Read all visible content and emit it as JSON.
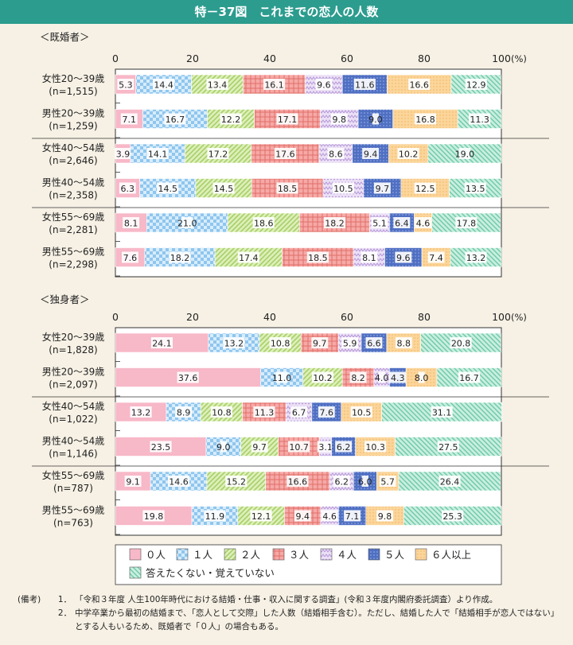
{
  "title": "特－37図　これまでの恋人の人数",
  "chart_data": [
    {
      "type": "bar",
      "orientation": "horizontal",
      "stacked": true,
      "title": "＜既婚者＞",
      "xlim": [
        0,
        100
      ],
      "x_ticks": [
        "0",
        "20",
        "40",
        "60",
        "80",
        "100"
      ],
      "x_unit": "(%)",
      "categories": [
        [
          "女性20～39歳",
          "(n=1,515)"
        ],
        [
          "男性20～39歳",
          "(n=1,259)"
        ],
        [
          "女性40～54歳",
          "(n=2,646)"
        ],
        [
          "男性40～54歳",
          "(n=2,358)"
        ],
        [
          "女性55～69歳",
          "(n=2,281)"
        ],
        [
          "男性55～69歳",
          "(n=2,298)"
        ]
      ],
      "rows": [
        [
          5.3,
          14.4,
          13.4,
          16.1,
          9.6,
          11.6,
          16.6,
          12.9
        ],
        [
          7.1,
          16.7,
          12.2,
          17.1,
          9.8,
          9.0,
          16.8,
          11.3
        ],
        [
          3.9,
          14.1,
          17.2,
          17.6,
          8.6,
          9.4,
          10.2,
          19.0
        ],
        [
          6.3,
          14.5,
          14.5,
          18.5,
          10.5,
          9.7,
          12.5,
          13.5
        ],
        [
          8.1,
          21.0,
          18.6,
          18.2,
          5.1,
          6.4,
          4.6,
          17.8
        ],
        [
          7.6,
          18.2,
          17.4,
          18.5,
          8.1,
          9.6,
          7.4,
          13.2
        ]
      ]
    },
    {
      "type": "bar",
      "orientation": "horizontal",
      "stacked": true,
      "title": "＜独身者＞",
      "xlim": [
        0,
        100
      ],
      "x_ticks": [
        "0",
        "20",
        "40",
        "60",
        "80",
        "100"
      ],
      "x_unit": "(%)",
      "categories": [
        [
          "女性20～39歳",
          "(n=1,828)"
        ],
        [
          "男性20～39歳",
          "(n=2,097)"
        ],
        [
          "女性40～54歳",
          "(n=1,022)"
        ],
        [
          "男性40～54歳",
          "(n=1,146)"
        ],
        [
          "女性55～69歳",
          "(n=787)"
        ],
        [
          "男性55～69歳",
          "(n=763)"
        ]
      ],
      "rows": [
        [
          24.1,
          13.2,
          10.8,
          9.7,
          5.9,
          6.6,
          8.8,
          20.8
        ],
        [
          37.6,
          11.0,
          10.2,
          8.2,
          4.0,
          4.3,
          8.0,
          16.7
        ],
        [
          13.2,
          8.9,
          10.8,
          11.3,
          6.7,
          7.6,
          10.5,
          31.1
        ],
        [
          23.5,
          9.0,
          9.7,
          10.7,
          3.1,
          6.2,
          10.3,
          27.5
        ],
        [
          9.1,
          14.6,
          15.2,
          16.6,
          6.2,
          6.0,
          5.7,
          26.4
        ],
        [
          19.8,
          11.9,
          12.1,
          9.4,
          4.6,
          7.1,
          9.8,
          25.3
        ]
      ]
    }
  ],
  "series": [
    {
      "name": "０人",
      "color": "#f7b8c8"
    },
    {
      "name": "１人",
      "color": "#a9d4f2"
    },
    {
      "name": "２人",
      "color": "#cfe6a0"
    },
    {
      "name": "３人",
      "color": "#f49d9a"
    },
    {
      "name": "４人",
      "color": "#d7c2ea"
    },
    {
      "name": "５人",
      "color": "#4f6fc2"
    },
    {
      "name": "６人以上",
      "color": "#fbd59a"
    },
    {
      "name": "答えたくない・覚えていない",
      "color": "#a5e0cc"
    }
  ],
  "notes": {
    "label": "(備考)",
    "items": [
      {
        "num": "1．",
        "text": "「令和３年度 人生100年時代における結婚・仕事・収入に関する調査」(令和３年度内閣府委託調査）より作成。"
      },
      {
        "num": "2．",
        "text": "中学卒業から最初の結婚まで、「恋人として交際」した人数（結婚相手含む）。ただし、結婚した人で「結婚相手が恋人ではない」とする人もいるため、既婚者で「０人」の場合もある。"
      }
    ]
  }
}
